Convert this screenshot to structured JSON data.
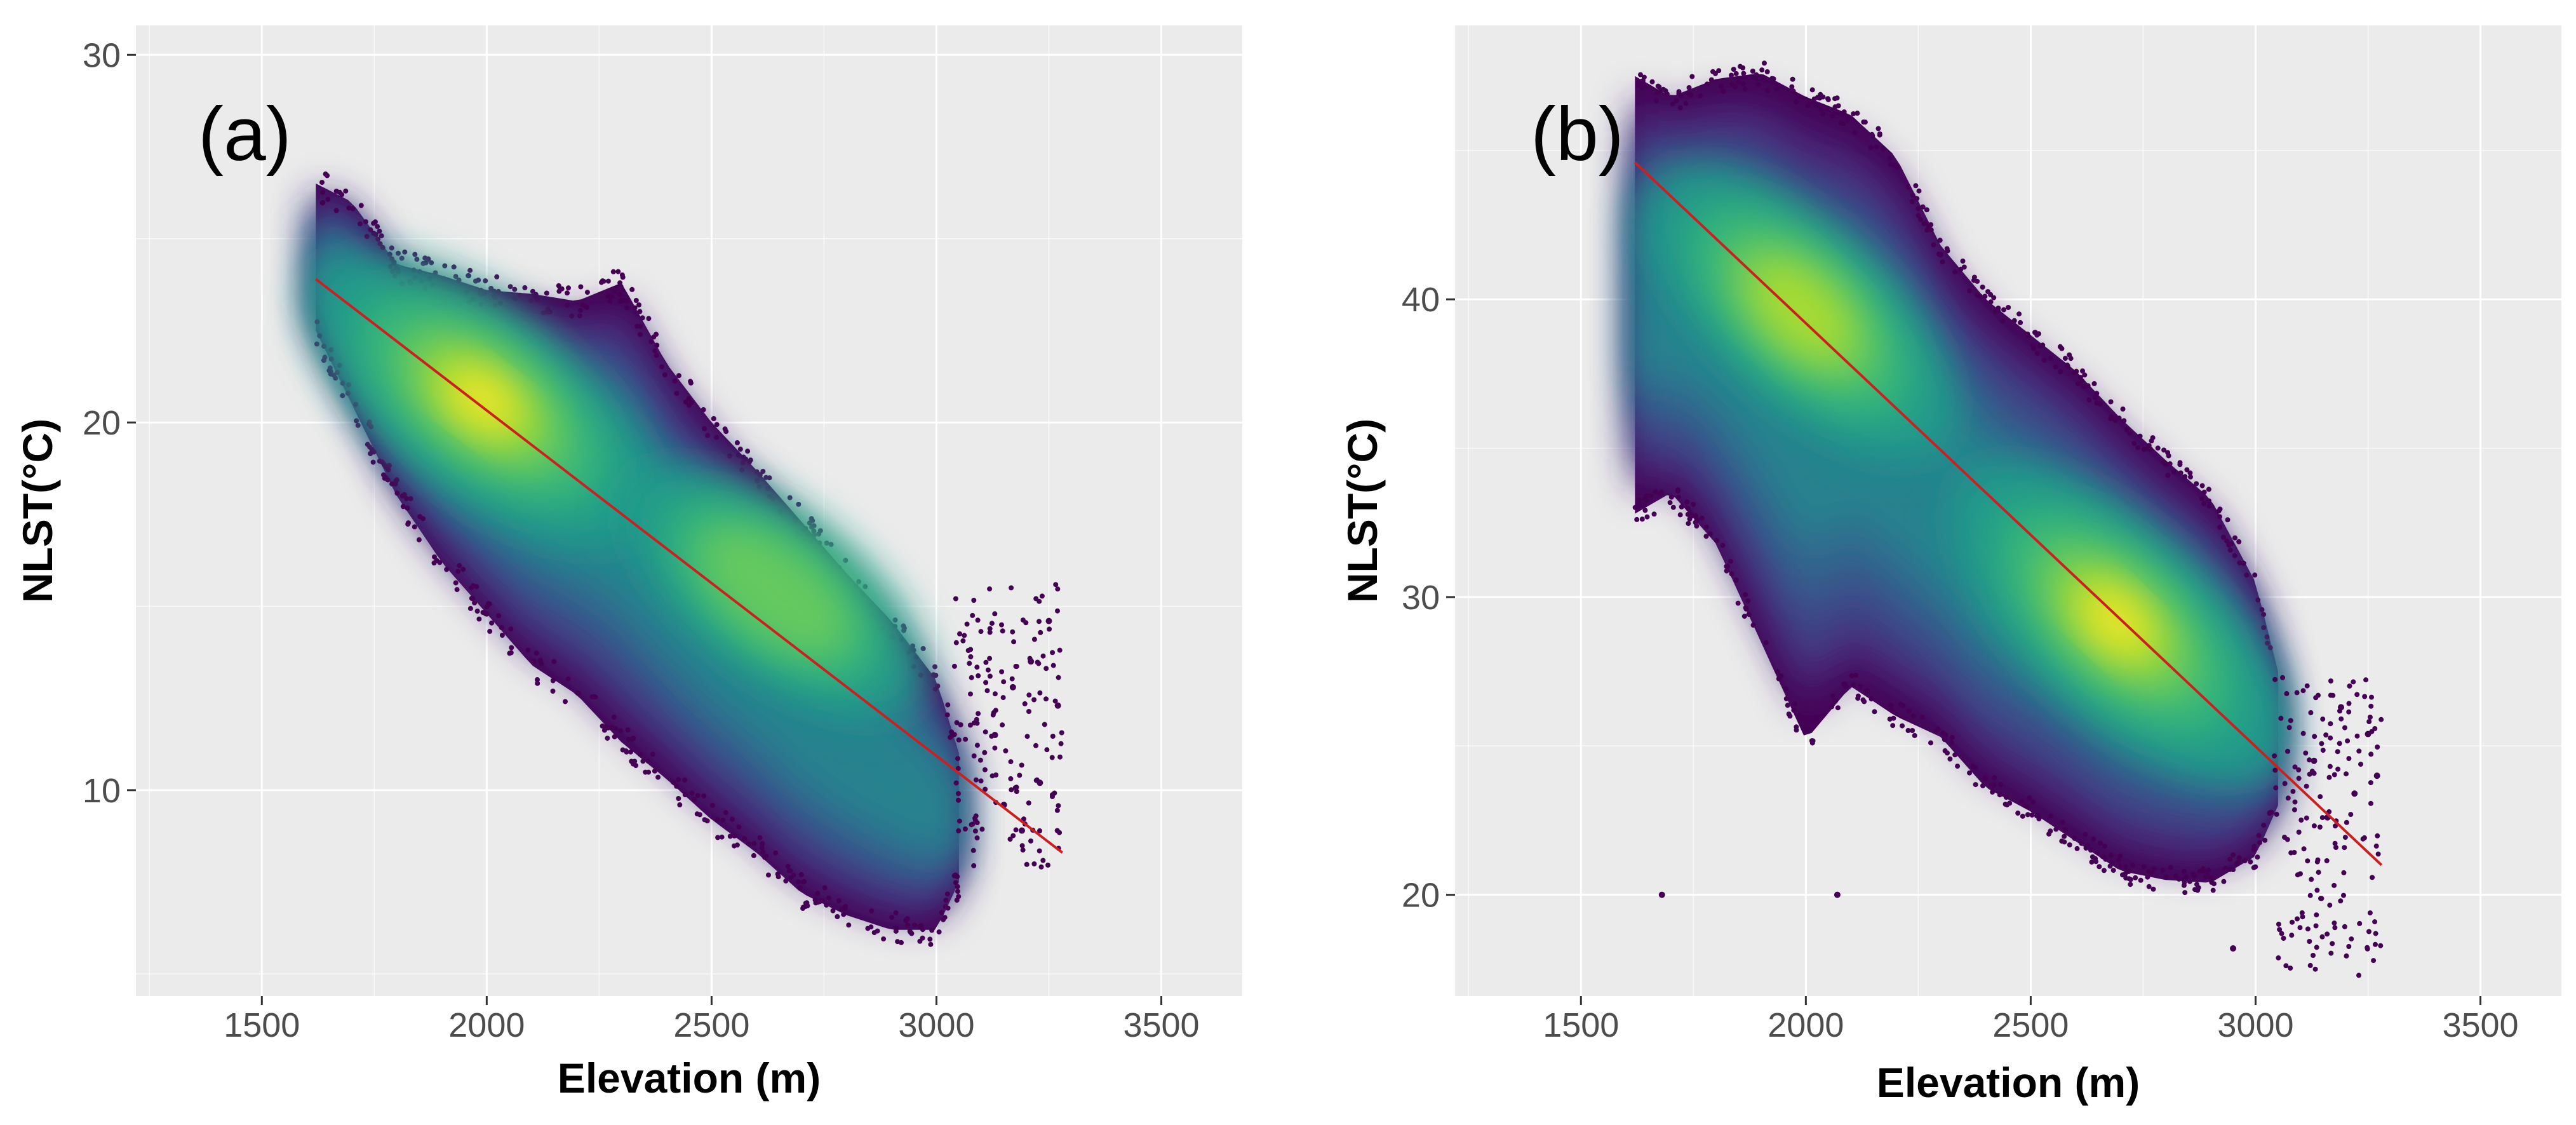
{
  "colors": {
    "panel_bg": "#EBEBEB",
    "grid_major": "#FFFFFF",
    "fit_line": "#CC1F1F",
    "viridis": [
      "#440154",
      "#482878",
      "#3E4A89",
      "#31688E",
      "#26828E",
      "#1F9E89",
      "#35B779",
      "#6DCD59",
      "#B4DE2C",
      "#FDE725"
    ]
  },
  "chart_data": [
    {
      "type": "scatter",
      "panel": "(a)",
      "title": "",
      "xlabel": "Elevation (m)",
      "ylabel": "NLST(°C)",
      "xlim": [
        1220,
        3680
      ],
      "ylim": [
        4.4,
        30.8
      ],
      "x_ticks": [
        1500,
        2000,
        2500,
        3000,
        3500
      ],
      "y_ticks": [
        10,
        20,
        30
      ],
      "x_tick_labels": [
        "1500",
        "2000",
        "2500",
        "3000",
        "3500"
      ],
      "y_tick_labels": [
        "10",
        "20",
        "30"
      ],
      "grid": true,
      "color_scale": "viridis (point density)",
      "fit_line": {
        "x": [
          1620,
          3280
        ],
        "y": [
          23.9,
          8.3
        ]
      },
      "density_peaks": [
        {
          "x": 1990,
          "y": 20.6,
          "level": 1.0
        },
        {
          "x": 2640,
          "y": 15.4,
          "level": 0.55
        }
      ],
      "cloud_envelope": {
        "x": [
          1620,
          1700,
          1800,
          1900,
          2000,
          2100,
          2200,
          2300,
          2400,
          2500,
          2600,
          2700,
          2800,
          2900,
          3000,
          3050
        ],
        "upper": [
          26.5,
          26.0,
          24.3,
          24.0,
          23.6,
          23.5,
          23.3,
          23.8,
          21.6,
          20.0,
          18.7,
          17.3,
          15.9,
          14.6,
          13.0,
          11.0
        ],
        "lower": [
          22.5,
          20.5,
          18.0,
          16.2,
          14.8,
          13.4,
          12.6,
          11.3,
          10.3,
          9.2,
          8.3,
          7.2,
          6.6,
          6.2,
          6.2,
          7.5
        ]
      },
      "outliers": {
        "x": [
          3130,
          3150,
          3170,
          3190,
          3210,
          3230,
          3250,
          3270
        ],
        "y": [
          11.5,
          9.6,
          12.8,
          8.9,
          13.5,
          10.2,
          14.6,
          12.3
        ]
      }
    },
    {
      "type": "scatter",
      "panel": "(b)",
      "title": "",
      "xlabel": "Elevation (m)",
      "ylabel": "NLST(°C)",
      "xlim": [
        1220,
        3680
      ],
      "ylim": [
        16.6,
        49.2
      ],
      "x_ticks": [
        1500,
        2000,
        2500,
        3000,
        3500
      ],
      "y_ticks": [
        20,
        30,
        40
      ],
      "x_tick_labels": [
        "1500",
        "2000",
        "2500",
        "3000",
        "3500"
      ],
      "y_tick_labels": [
        "20",
        "30",
        "40"
      ],
      "grid": true,
      "color_scale": "viridis (point density)",
      "fit_line": {
        "x": [
          1620,
          3280
        ],
        "y": [
          44.6,
          21.0
        ]
      },
      "density_peaks": [
        {
          "x": 1990,
          "y": 39.6,
          "level": 0.8
        },
        {
          "x": 2690,
          "y": 29.2,
          "level": 1.0
        }
      ],
      "cloud_envelope": {
        "x": [
          1620,
          1700,
          1800,
          1900,
          2000,
          2100,
          2200,
          2300,
          2400,
          2500,
          2600,
          2700,
          2800,
          2900,
          3000,
          3050
        ],
        "upper": [
          47.5,
          46.8,
          47.4,
          47.6,
          46.8,
          46.2,
          44.8,
          41.8,
          40.0,
          38.8,
          37.6,
          36.0,
          34.6,
          33.3,
          30.5,
          27.5
        ],
        "lower": [
          32.8,
          33.5,
          31.8,
          28.5,
          25.2,
          27.0,
          26.0,
          25.3,
          23.6,
          22.8,
          21.8,
          20.8,
          20.5,
          20.4,
          21.3,
          23.0
        ]
      },
      "outliers": {
        "x": [
          1680,
          2070,
          2950,
          3130,
          3160,
          3190,
          3220,
          3250,
          3270
        ],
        "y": [
          20.0,
          20.0,
          18.2,
          24.5,
          22.6,
          26.3,
          23.4,
          25.4,
          24.0
        ]
      }
    }
  ]
}
